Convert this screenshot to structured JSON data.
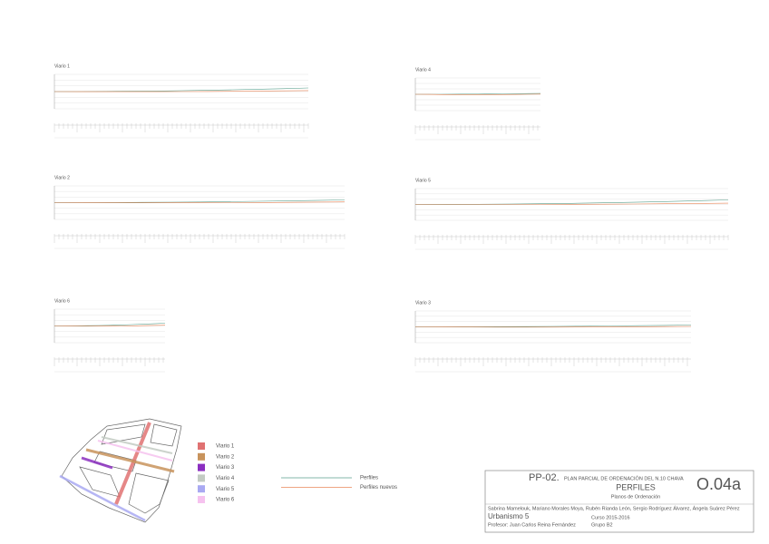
{
  "panels": [
    {
      "title": "Viario 1"
    },
    {
      "title": "Viario 4"
    },
    {
      "title": "Viario 2"
    },
    {
      "title": "Viario 5"
    },
    {
      "title": "Viario 6"
    },
    {
      "title": "Viario 3"
    }
  ],
  "legend": {
    "items": [
      {
        "label": "Viario 1",
        "color": "#e07272"
      },
      {
        "label": "Viario 2",
        "color": "#c8935c"
      },
      {
        "label": "Viario 3",
        "color": "#8b2fc0"
      },
      {
        "label": "Viario 4",
        "color": "#c3cbc3"
      },
      {
        "label": "Viario 5",
        "color": "#a9a9f2"
      },
      {
        "label": "Viario 6",
        "color": "#f6c2ef"
      }
    ]
  },
  "line_legend": [
    {
      "label": "Perfiles",
      "color": "#5a9f8c"
    },
    {
      "label": "Perfiles nuevos",
      "color": "#e8875a"
    }
  ],
  "title_block": {
    "code": "PP-02.",
    "plan": "PLAN PARCIAL DE ORDENACIÓN DEL N.10 CHAVA",
    "sheet_title": "PERFILES",
    "sheet_number": "O.04a",
    "subtitle": "Planos de Ordenación",
    "authors": "Sabrina Mamelouk, Mariano Morales Moya, Rubén Rianda León, Sergio Rodríguez Álvarez, Ángela Suárez Pérez",
    "course": "Urbanismo 5",
    "year": "Curso 2015-2016",
    "professor": "Profesor: Juan Carlos Reina Fernández",
    "group": "Grupo B2"
  }
}
